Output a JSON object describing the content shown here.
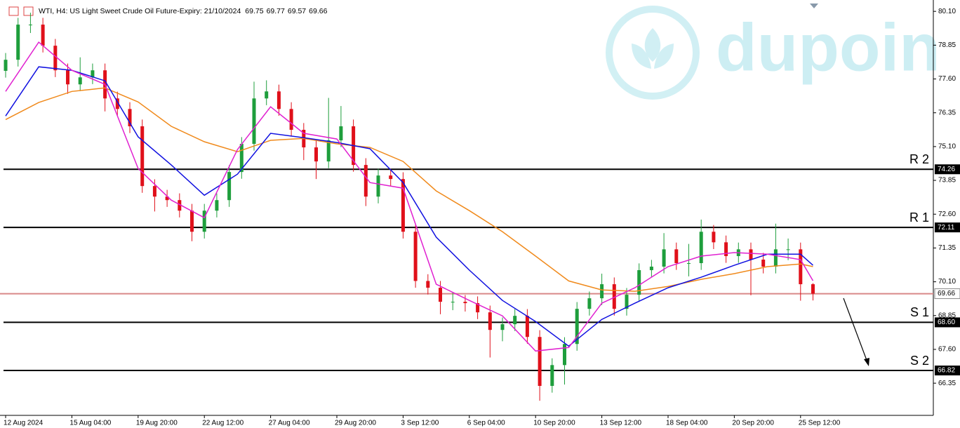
{
  "chart_data": {
    "type": "candlestick",
    "title": "WTI, H4:  US Light Sweet Crude Oil Future-Expiry: 21/10/2024",
    "ohlc": [
      69.75,
      69.77,
      69.57,
      69.66
    ],
    "watermark": "dupoin",
    "up_color": "#1e9e3c",
    "down_color": "#e0101a",
    "x": [
      0,
      3,
      6,
      9,
      12,
      15,
      18,
      21,
      24,
      27,
      30,
      33,
      36,
      39,
      42,
      45,
      48,
      51,
      54,
      57,
      60,
      63,
      66,
      69,
      72,
      75,
      78,
      81,
      84,
      87,
      90,
      93,
      96,
      99,
      102,
      105,
      108,
      111,
      114,
      117,
      120,
      123,
      126,
      129,
      132,
      135,
      138,
      141,
      144,
      147,
      150,
      153,
      156,
      159,
      162,
      165,
      168,
      171,
      174,
      177,
      180,
      183,
      186,
      189,
      192,
      195
    ],
    "open": [
      77.9,
      78.31,
      79.61,
      79.61,
      78.83,
      77.92,
      77.4,
      77.66,
      77.92,
      76.88,
      76.49,
      75.85,
      73.64,
      73.25,
      73.12,
      72.73,
      71.95,
      72.73,
      73.12,
      74.16,
      75.2,
      76.88,
      77.14,
      76.49,
      75.72,
      75.07,
      74.55,
      75.33,
      75.85,
      74.42,
      73.25,
      74.03,
      73.9,
      71.95,
      70.13,
      69.88,
      69.36,
      69.36,
      69.31,
      68.97,
      68.32,
      68.53,
      68.84,
      68.06,
      66.25,
      67.02,
      67.8,
      69.1,
      69.49,
      70.01,
      69.1,
      69.62,
      70.53,
      70.66,
      71.3,
      70.79,
      70.79,
      71.95,
      71.56,
      71.05,
      71.3,
      70.92,
      70.66,
      71.3,
      71.3,
      70.01
    ],
    "high": [
      78.56,
      79.86,
      80.05,
      79.86,
      79.08,
      78.17,
      78.4,
      78.17,
      78.17,
      77.13,
      76.74,
      76.1,
      73.89,
      73.5,
      73.37,
      72.98,
      72.98,
      73.37,
      74.41,
      75.45,
      77.5,
      77.55,
      77.39,
      76.74,
      75.97,
      75.32,
      76.9,
      76.6,
      76.1,
      74.67,
      74.28,
      74.28,
      74.15,
      72.2,
      70.38,
      70.13,
      69.7,
      69.61,
      69.56,
      69.22,
      68.78,
      69.09,
      69.09,
      68.31,
      67.27,
      68.05,
      69.35,
      69.74,
      70.4,
      70.26,
      69.87,
      70.78,
      70.91,
      71.9,
      71.55,
      71.5,
      72.4,
      72.2,
      71.81,
      71.55,
      71.55,
      71.17,
      72.25,
      71.7,
      71.55,
      70.05
    ],
    "low": [
      77.65,
      78.06,
      79.3,
      78.58,
      77.67,
      77.05,
      77.15,
      77.41,
      76.4,
      76.24,
      75.6,
      73.39,
      72.7,
      72.87,
      72.48,
      71.6,
      71.7,
      72.48,
      72.87,
      73.91,
      74.95,
      76.63,
      76.24,
      75.47,
      74.6,
      73.9,
      74.3,
      75.08,
      74.17,
      72.9,
      73.0,
      73.65,
      71.7,
      69.88,
      69.63,
      68.9,
      69.05,
      69.0,
      68.72,
      67.3,
      67.9,
      68.28,
      67.81,
      65.7,
      66.0,
      66.3,
      67.55,
      68.85,
      69.24,
      68.85,
      68.85,
      69.37,
      70.28,
      70.41,
      70.54,
      70.3,
      70.54,
      71.31,
      70.8,
      70.8,
      69.6,
      70.41,
      70.41,
      70.9,
      69.4,
      69.41
    ],
    "close": [
      78.31,
      79.61,
      79.61,
      78.83,
      77.92,
      77.4,
      77.66,
      77.92,
      76.88,
      76.49,
      75.85,
      73.64,
      73.25,
      73.12,
      72.73,
      71.95,
      72.73,
      73.12,
      74.16,
      75.2,
      76.88,
      77.14,
      76.49,
      75.72,
      75.07,
      74.55,
      75.33,
      75.85,
      74.42,
      73.25,
      74.03,
      73.9,
      71.95,
      70.13,
      69.88,
      69.36,
      69.36,
      69.31,
      68.97,
      68.32,
      68.53,
      68.84,
      68.06,
      66.25,
      67.02,
      67.8,
      69.1,
      69.49,
      70.01,
      69.1,
      69.62,
      70.53,
      70.66,
      71.3,
      70.79,
      70.79,
      71.95,
      71.56,
      71.05,
      71.3,
      70.92,
      70.66,
      71.3,
      71.3,
      70.01,
      69.66
    ],
    "overlays": [
      {
        "color": "#f08a1c",
        "x": [
          0,
          8,
          16,
          24,
          32,
          40,
          48,
          56,
          64,
          72,
          80,
          88,
          96,
          104,
          112,
          120,
          128,
          136,
          144,
          152,
          160,
          168,
          176,
          184,
          192,
          195
        ],
        "values": [
          76.1,
          76.73,
          77.14,
          77.27,
          76.75,
          75.85,
          75.28,
          74.91,
          75.33,
          75.4,
          75.2,
          75.07,
          74.55,
          73.46,
          72.73,
          71.95,
          71.05,
          70.13,
          69.8,
          69.75,
          69.93,
          70.19,
          70.4,
          70.66,
          70.76,
          70.66
        ]
      },
      {
        "color": "#1010e0",
        "x": [
          0,
          8,
          16,
          24,
          32,
          40,
          48,
          56,
          64,
          72,
          80,
          88,
          96,
          104,
          112,
          120,
          128,
          136,
          144,
          152,
          160,
          168,
          176,
          184,
          192,
          195
        ],
        "values": [
          76.23,
          78.05,
          77.92,
          77.53,
          75.46,
          74.42,
          73.3,
          74.08,
          75.59,
          75.43,
          75.25,
          75.02,
          73.77,
          71.75,
          70.53,
          69.41,
          68.63,
          67.72,
          68.71,
          69.31,
          69.88,
          70.27,
          70.71,
          71.12,
          71.12,
          70.71
        ]
      },
      {
        "color": "#e020d0",
        "x": [
          0,
          8,
          16,
          24,
          32,
          40,
          48,
          56,
          64,
          72,
          80,
          88,
          96,
          104,
          112,
          120,
          128,
          136,
          144,
          152,
          160,
          168,
          176,
          184,
          192,
          195
        ],
        "values": [
          77.14,
          78.96,
          77.92,
          77.4,
          74.29,
          73.12,
          72.47,
          74.99,
          76.57,
          75.59,
          75.38,
          73.77,
          73.56,
          70.01,
          69.41,
          68.84,
          67.54,
          67.67,
          69.31,
          69.88,
          70.66,
          71.05,
          71.18,
          71.12,
          70.92,
          70.14
        ]
      }
    ],
    "levels": {
      "names": [
        "R 2",
        "R 1",
        "S 1",
        "S 2"
      ],
      "values": [
        74.26,
        72.11,
        68.6,
        66.82
      ],
      "value_labels": [
        "74.26",
        "72.11",
        "68.60",
        "66.82"
      ],
      "color": "#000000"
    },
    "last_price": 69.66,
    "last_price_color": "#d98888",
    "xlim": [
      -1.36,
      224.07
    ],
    "ylim": [
      65.16,
      80.52
    ],
    "xticks": [
      {
        "value": 0,
        "label": "12 Aug 2024"
      },
      {
        "value": 16,
        "label": "15 Aug 04:00"
      },
      {
        "value": 32,
        "label": "19 Aug 20:00"
      },
      {
        "value": 48,
        "label": "22 Aug 12:00"
      },
      {
        "value": 64,
        "label": "27 Aug 04:00"
      },
      {
        "value": 80,
        "label": "29 Aug 20:00"
      },
      {
        "value": 96,
        "label": "3 Sep 12:00"
      },
      {
        "value": 112,
        "label": "6 Sep 04:00"
      },
      {
        "value": 128,
        "label": "10 Sep 20:00"
      },
      {
        "value": 144,
        "label": "13 Sep 12:00"
      },
      {
        "value": 160,
        "label": "18 Sep 04:00"
      },
      {
        "value": 176,
        "label": "20 Sep 20:00"
      },
      {
        "value": 192,
        "label": "25 Sep 12:00"
      }
    ],
    "yticks": [
      {
        "value": 80.1,
        "label": "80.10"
      },
      {
        "value": 78.85,
        "label": "78.85"
      },
      {
        "value": 77.6,
        "label": "77.60"
      },
      {
        "value": 76.35,
        "label": "76.35"
      },
      {
        "value": 75.1,
        "label": "75.10"
      },
      {
        "value": 73.85,
        "label": "73.85"
      },
      {
        "value": 72.6,
        "label": "72.60"
      },
      {
        "value": 71.35,
        "label": "71.35"
      },
      {
        "value": 70.1,
        "label": "70.10"
      },
      {
        "value": 68.85,
        "label": "68.85"
      },
      {
        "value": 67.6,
        "label": "67.60"
      },
      {
        "value": 66.35,
        "label": "66.35"
      }
    ]
  }
}
